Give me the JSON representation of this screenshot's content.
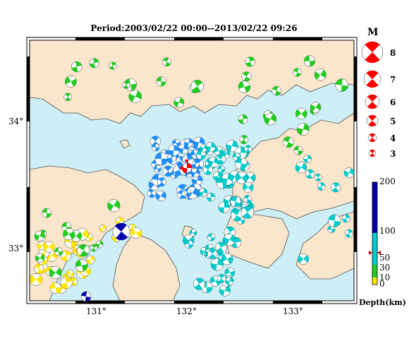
{
  "title": "Period:2003/02/22 00:00--2013/02/22 09:26",
  "map": {
    "lat_labels": [
      "34°",
      "33°"
    ],
    "lon_labels": [
      "131°",
      "132°",
      "133°"
    ],
    "colors": {
      "sea": "#cfeff6",
      "land": "#fae6cc",
      "coast": "#505050",
      "frame": "#000000"
    }
  },
  "magnitude_legend": {
    "heading": "M",
    "items": [
      {
        "label": "8",
        "m": 8
      },
      {
        "label": "7",
        "m": 7
      },
      {
        "label": "6",
        "m": 6
      },
      {
        "label": "5",
        "m": 5
      },
      {
        "label": "4",
        "m": 4
      },
      {
        "label": "3",
        "m": 3
      }
    ],
    "color": "#ff0000"
  },
  "depth_scale": {
    "title": "Depth(km)",
    "tick_labels": [
      "200",
      "100",
      "50",
      "30",
      "10",
      "0"
    ],
    "bands": [
      {
        "from": 0,
        "to": 10,
        "color": "#ffe800"
      },
      {
        "from": 10,
        "to": 30,
        "color": "#22cc22"
      },
      {
        "from": 30,
        "to": 100,
        "color": "#00cccc"
      },
      {
        "from": 100,
        "to": 200,
        "color": "#0000aa"
      }
    ],
    "marker_depth": 50
  },
  "mechanisms": {
    "highlight_color": "#ff0000",
    "depth_colors": {
      "shallow": "#ffe800",
      "upper_crust": "#22cc22",
      "intermediate": "#00cccc",
      "intermediate_deep": "#1e90ff",
      "deep": "#0000aa"
    }
  }
}
